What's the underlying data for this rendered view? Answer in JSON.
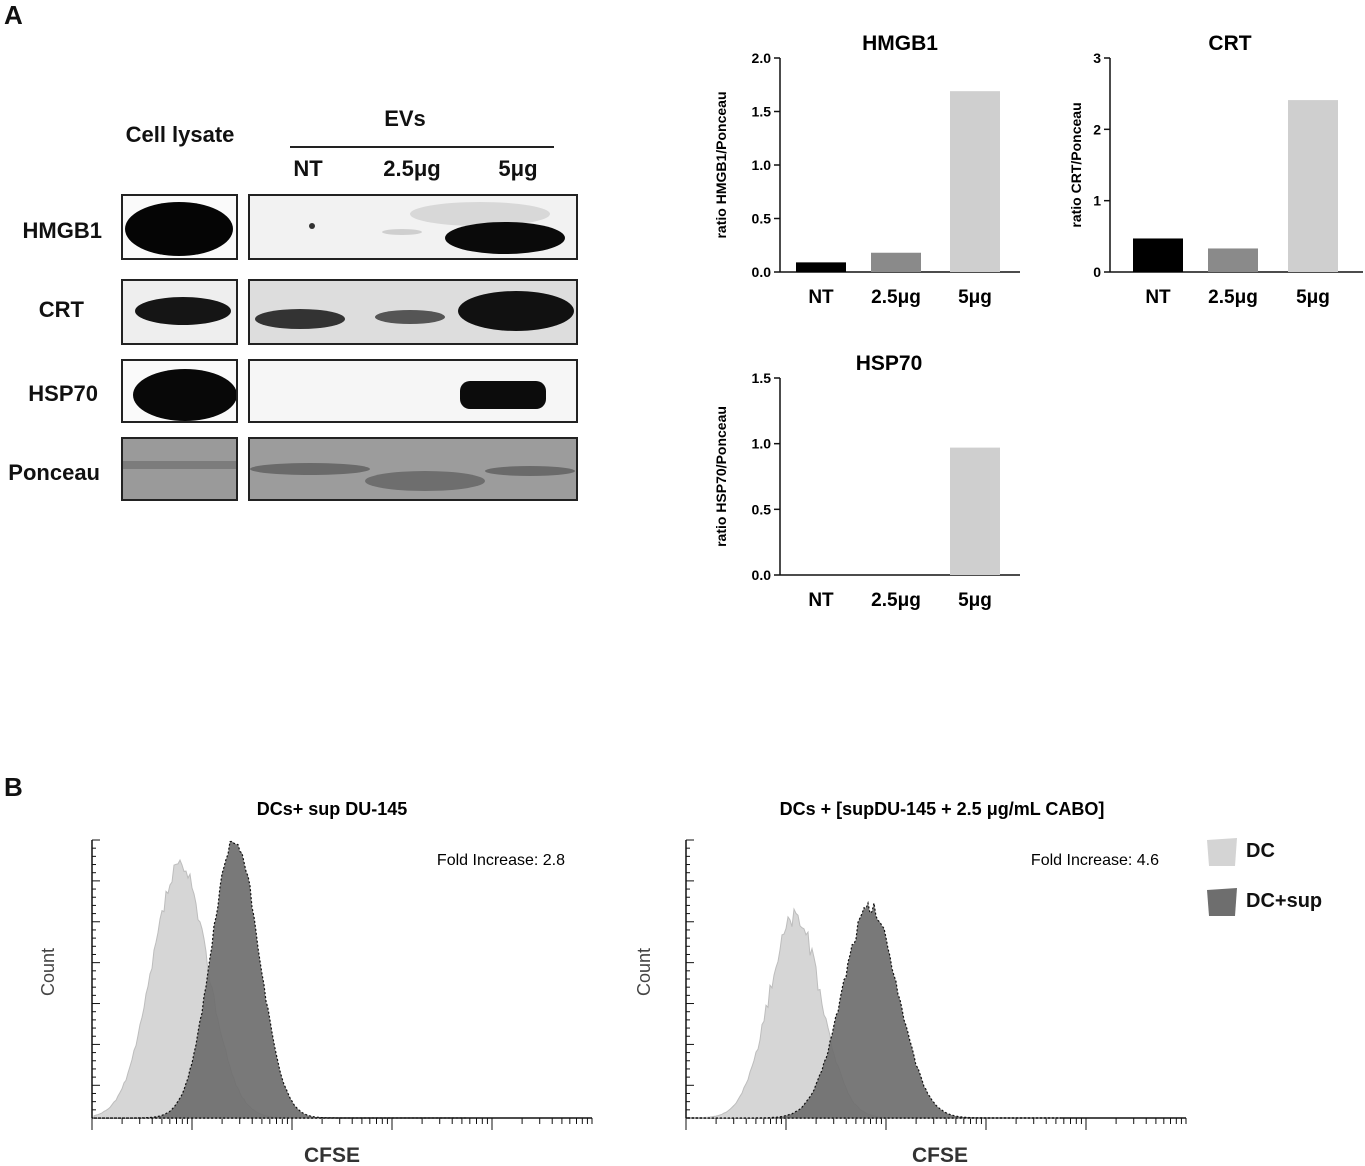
{
  "panel_a": {
    "label": "A",
    "blot": {
      "cell_lysate_label": "Cell lysate",
      "evs_label": "EVs",
      "lanes": [
        "NT",
        "2.5μg",
        "5μg"
      ],
      "rows": [
        "HMGB1",
        "CRT",
        "HSP70",
        "Ponceau"
      ]
    }
  },
  "panel_b": {
    "label": "B",
    "legend": [
      "DC",
      "DC+sup"
    ],
    "legend_colors": [
      "#d4d4d4",
      "#6e6e6e"
    ],
    "hist_left": {
      "title": "DCs+ sup DU-145",
      "fold": "Fold Increase: 2.8",
      "xlabel": "CFSE",
      "ylabel": "Count"
    },
    "hist_right": {
      "title": "DCs + [supDU-145 + 2.5 μg/mL CABO]",
      "fold": "Fold Increase: 4.6",
      "xlabel": "CFSE",
      "ylabel": "Count"
    }
  },
  "chart_data": [
    {
      "type": "bar",
      "title": "HMGB1",
      "ylabel": "ratio HMGB1/Ponceau",
      "categories": [
        "NT",
        "2.5μg",
        "5μg"
      ],
      "values": [
        0.09,
        0.18,
        1.69
      ],
      "colors": [
        "#000000",
        "#8a8a8a",
        "#cfcfcf"
      ],
      "ylim": [
        0,
        2.0
      ],
      "yticks": [
        "0.0",
        "0.5",
        "1.0",
        "1.5",
        "2.0"
      ],
      "ytick_values": [
        0,
        0.5,
        1.0,
        1.5,
        2.0
      ]
    },
    {
      "type": "bar",
      "title": "CRT",
      "ylabel": "ratio CRT/Ponceau",
      "categories": [
        "NT",
        "2.5μg",
        "5μg"
      ],
      "values": [
        0.47,
        0.33,
        2.41
      ],
      "colors": [
        "#000000",
        "#8a8a8a",
        "#cfcfcf"
      ],
      "ylim": [
        0,
        3
      ],
      "yticks": [
        "0",
        "1",
        "2",
        "3"
      ],
      "ytick_values": [
        0,
        1,
        2,
        3
      ]
    },
    {
      "type": "bar",
      "title": "HSP70",
      "ylabel": "ratio HSP70/Ponceau",
      "categories": [
        "NT",
        "2.5μg",
        "5μg"
      ],
      "values": [
        0.0,
        0.0,
        0.97
      ],
      "colors": [
        "#000000",
        "#8a8a8a",
        "#cfcfcf"
      ],
      "ylim": [
        0,
        1.5
      ],
      "yticks": [
        "0.0",
        "0.5",
        "1.0",
        "1.5"
      ],
      "ytick_values": [
        0,
        0.5,
        1.0,
        1.5
      ]
    }
  ]
}
